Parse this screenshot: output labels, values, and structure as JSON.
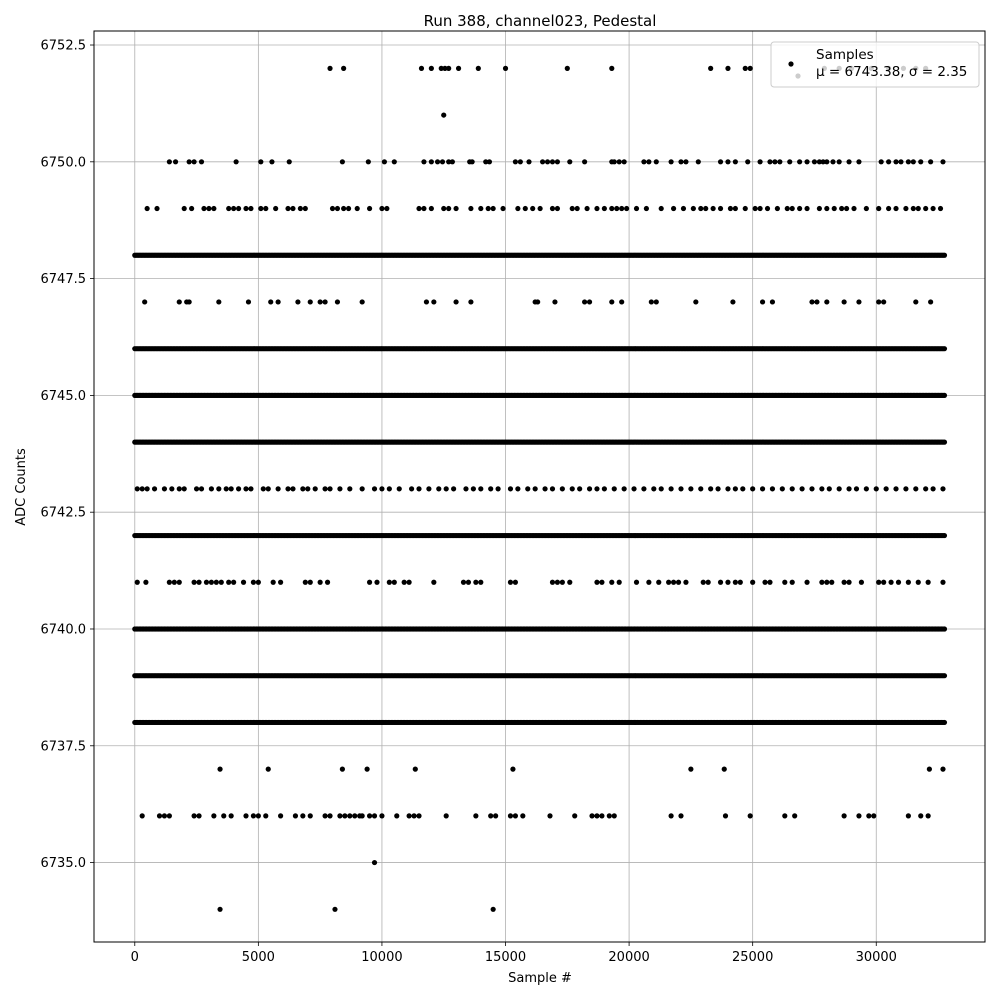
{
  "chart_data": {
    "type": "scatter",
    "title": "Run 388, channel023, Pedestal",
    "xlabel": "Sample #",
    "ylabel": "ADC Counts",
    "xlim": [
      -1650,
      34400
    ],
    "ylim": [
      6733.3,
      6752.8
    ],
    "x_ticks": [
      0,
      5000,
      10000,
      15000,
      20000,
      25000,
      30000
    ],
    "y_ticks": [
      6735.0,
      6737.5,
      6740.0,
      6742.5,
      6745.0,
      6747.5,
      6750.0,
      6752.5
    ],
    "grid": true,
    "legend_position": "top-right",
    "legend": {
      "series_label": "Samples",
      "stats_label": "μ = 6743.38, σ = 2.35"
    },
    "series": [
      {
        "name": "Samples",
        "color": "#000000",
        "dense_levels": [
          6738,
          6739,
          6740,
          6742,
          6744,
          6745,
          6746,
          6748
        ],
        "x_range": [
          0,
          32767
        ],
        "sparse_points": {
          "6752": [
            7900,
            8450,
            11600,
            12000,
            12400,
            12550,
            12700,
            13100,
            13900,
            15000,
            17500,
            19300,
            23300,
            24000,
            24700,
            24900,
            27900,
            28500,
            29000,
            29800,
            30500,
            31100,
            31600,
            32000
          ],
          "6751": [
            12500
          ],
          "6750": [
            1400,
            1650,
            2200,
            2400,
            2700,
            4100,
            5100,
            5550,
            6250,
            8400,
            9450,
            10100,
            10500,
            11700,
            12000,
            12250,
            12450,
            12700,
            12850,
            13550,
            13650,
            14200,
            14350,
            15400,
            15600,
            15950,
            16500,
            16700,
            16900,
            17100,
            17600,
            18200,
            19300,
            19400,
            19600,
            19800,
            20600,
            20800,
            21100,
            21700,
            22100,
            22300,
            22800,
            23700,
            24000,
            24300,
            24800,
            25300,
            25700,
            25900,
            26100,
            26500,
            26900,
            27200,
            27500,
            27700,
            27850,
            28000,
            28250,
            28500,
            28900,
            29300,
            30200,
            30500,
            30800,
            31000,
            31300,
            31500,
            31800,
            32200,
            32700
          ],
          "6749": [
            500,
            900,
            2000,
            2300,
            2800,
            3000,
            3200,
            3800,
            4000,
            4200,
            4500,
            4700,
            5100,
            5300,
            5700,
            6200,
            6400,
            6700,
            6900,
            8000,
            8200,
            8450,
            8650,
            9000,
            9500,
            10000,
            10200,
            11500,
            11700,
            12000,
            12500,
            12700,
            13000,
            13600,
            14000,
            14300,
            14500,
            14900,
            15500,
            15800,
            16100,
            16400,
            16900,
            17100,
            17700,
            17900,
            18300,
            18700,
            19000,
            19300,
            19500,
            19700,
            19900,
            20300,
            20700,
            21300,
            21800,
            22200,
            22600,
            22900,
            23100,
            23400,
            23700,
            24100,
            24300,
            24700,
            25100,
            25300,
            25600,
            26000,
            26400,
            26600,
            26900,
            27200,
            27700,
            28000,
            28300,
            28600,
            28800,
            29100,
            29600,
            30100,
            30500,
            30800,
            31200,
            31500,
            31700,
            32000,
            32300,
            32600
          ],
          "6747": [
            400,
            1800,
            2100,
            2200,
            3400,
            4600,
            5500,
            5800,
            6600,
            7100,
            7500,
            7700,
            8200,
            9200,
            11800,
            12100,
            13000,
            13600,
            16200,
            16300,
            17000,
            18200,
            18400,
            19300,
            19700,
            20900,
            21100,
            22700,
            24200,
            25400,
            25800,
            27400,
            27600,
            28000,
            28700,
            29300,
            30100,
            30300,
            31600,
            32200
          ],
          "6743": [
            100,
            300,
            500,
            800,
            1200,
            1500,
            1800,
            2000,
            2500,
            2700,
            3100,
            3400,
            3700,
            3900,
            4200,
            4500,
            4700,
            5200,
            5400,
            5800,
            6200,
            6400,
            6800,
            7000,
            7300,
            7700,
            7900,
            8300,
            8700,
            9200,
            9700,
            10000,
            10300,
            10700,
            11200,
            11500,
            11900,
            12300,
            12600,
            12900,
            13400,
            13700,
            14000,
            14400,
            14700,
            15200,
            15500,
            15900,
            16200,
            16600,
            16900,
            17300,
            17700,
            18000,
            18400,
            18700,
            19000,
            19400,
            19800,
            20200,
            20600,
            21000,
            21300,
            21700,
            22100,
            22500,
            22900,
            23300,
            23600,
            24000,
            24300,
            24600,
            25000,
            25400,
            25800,
            26200,
            26600,
            27000,
            27400,
            27800,
            28100,
            28500,
            28900,
            29200,
            29600,
            30000,
            30400,
            30800,
            31200,
            31600,
            32000,
            32300,
            32700
          ],
          "6741": [
            100,
            450,
            1400,
            1600,
            1800,
            2400,
            2600,
            2900,
            3100,
            3300,
            3500,
            3800,
            4000,
            4400,
            4800,
            5000,
            5600,
            5900,
            6900,
            7100,
            7500,
            7800,
            9500,
            9800,
            10300,
            10500,
            10900,
            11100,
            12100,
            13300,
            13500,
            13800,
            14000,
            15200,
            15400,
            16900,
            17100,
            17300,
            17600,
            18700,
            18900,
            19300,
            19600,
            20300,
            20800,
            21200,
            21600,
            21800,
            22000,
            22300,
            23000,
            23200,
            23700,
            24000,
            24300,
            24500,
            25000,
            25500,
            25700,
            26300,
            26600,
            27200,
            27800,
            28000,
            28200,
            28700,
            28900,
            29400,
            30100,
            30300,
            30600,
            30900,
            31300,
            31700,
            32100,
            32700
          ],
          "6737": [
            3450,
            5400,
            8400,
            9400,
            11350,
            15300,
            22500,
            23850,
            32150,
            32700
          ],
          "6736": [
            300,
            1000,
            1200,
            1400,
            2400,
            2600,
            3200,
            3600,
            3900,
            4500,
            4800,
            5000,
            5300,
            5900,
            6500,
            6800,
            7100,
            7700,
            7900,
            8300,
            8500,
            8700,
            8900,
            9100,
            9200,
            9500,
            9700,
            10000,
            10600,
            11100,
            11300,
            11500,
            12600,
            13800,
            14400,
            14600,
            15200,
            15400,
            15700,
            16800,
            17800,
            18500,
            18700,
            18900,
            19200,
            19400,
            21700,
            22100,
            23900,
            24900,
            26300,
            26700,
            28700,
            29300,
            29700,
            29900,
            31300,
            31800,
            32100
          ],
          "6735": [
            9700
          ],
          "6734": [
            3450,
            8100,
            14500
          ]
        }
      }
    ]
  }
}
